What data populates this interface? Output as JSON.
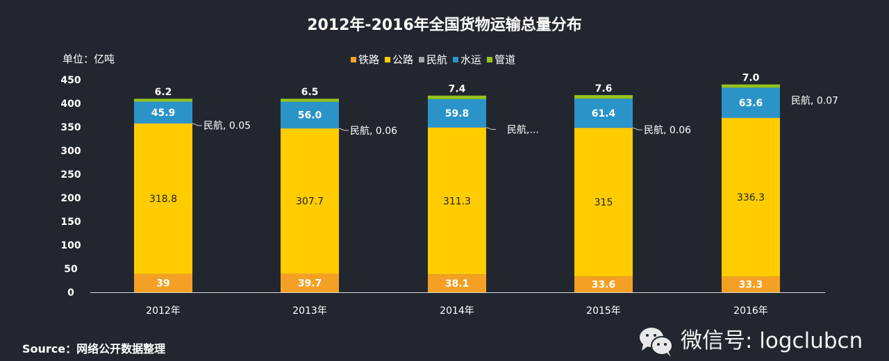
{
  "colors": {
    "background": "#22272f",
    "铁路": "#f4a024",
    "公路": "#ffcc00",
    "民航": "#a6a6a6",
    "水运": "#2a94c8",
    "管道": "#95c11f"
  },
  "chart_data": {
    "type": "bar",
    "stacked": true,
    "title": "2012年-2016年全国货物运输总量分布",
    "ylabel": "单位：亿吨",
    "ylim": [
      0,
      450
    ],
    "yticks": [
      0,
      50,
      100,
      150,
      200,
      250,
      300,
      350,
      400,
      450
    ],
    "grid": false,
    "legend_position": "top",
    "categories": [
      "2012年",
      "2013年",
      "2014年",
      "2015年",
      "2016年"
    ],
    "series": [
      {
        "name": "铁路",
        "values": [
          39,
          39.7,
          38.1,
          33.6,
          33.3
        ],
        "labels": [
          "39",
          "39.7",
          "38.1",
          "33.6",
          "33.3"
        ]
      },
      {
        "name": "公路",
        "values": [
          318.8,
          307.7,
          311.3,
          315,
          336.3
        ],
        "labels": [
          "318.8",
          "307.7",
          "311.3",
          "315",
          "336.3"
        ]
      },
      {
        "name": "民航",
        "values": [
          0.05,
          0.06,
          null,
          0.06,
          0.07
        ],
        "labels": [
          "民航, 0.05",
          "民航, 0.06",
          "民航,...",
          "民航, 0.06",
          "民航, 0.07"
        ]
      },
      {
        "name": "水运",
        "values": [
          45.9,
          56.0,
          59.8,
          61.4,
          63.6
        ],
        "labels": [
          "45.9",
          "56.0",
          "59.8",
          "61.4",
          "63.6"
        ]
      },
      {
        "name": "管道",
        "values": [
          6.2,
          6.5,
          7.4,
          7.6,
          7.0
        ],
        "labels": [
          "6.2",
          "6.5",
          "7.4",
          "7.6",
          "7.0"
        ]
      }
    ]
  },
  "source": "Source：网络公开数据整理",
  "watermark": "微信号: logclubcn"
}
